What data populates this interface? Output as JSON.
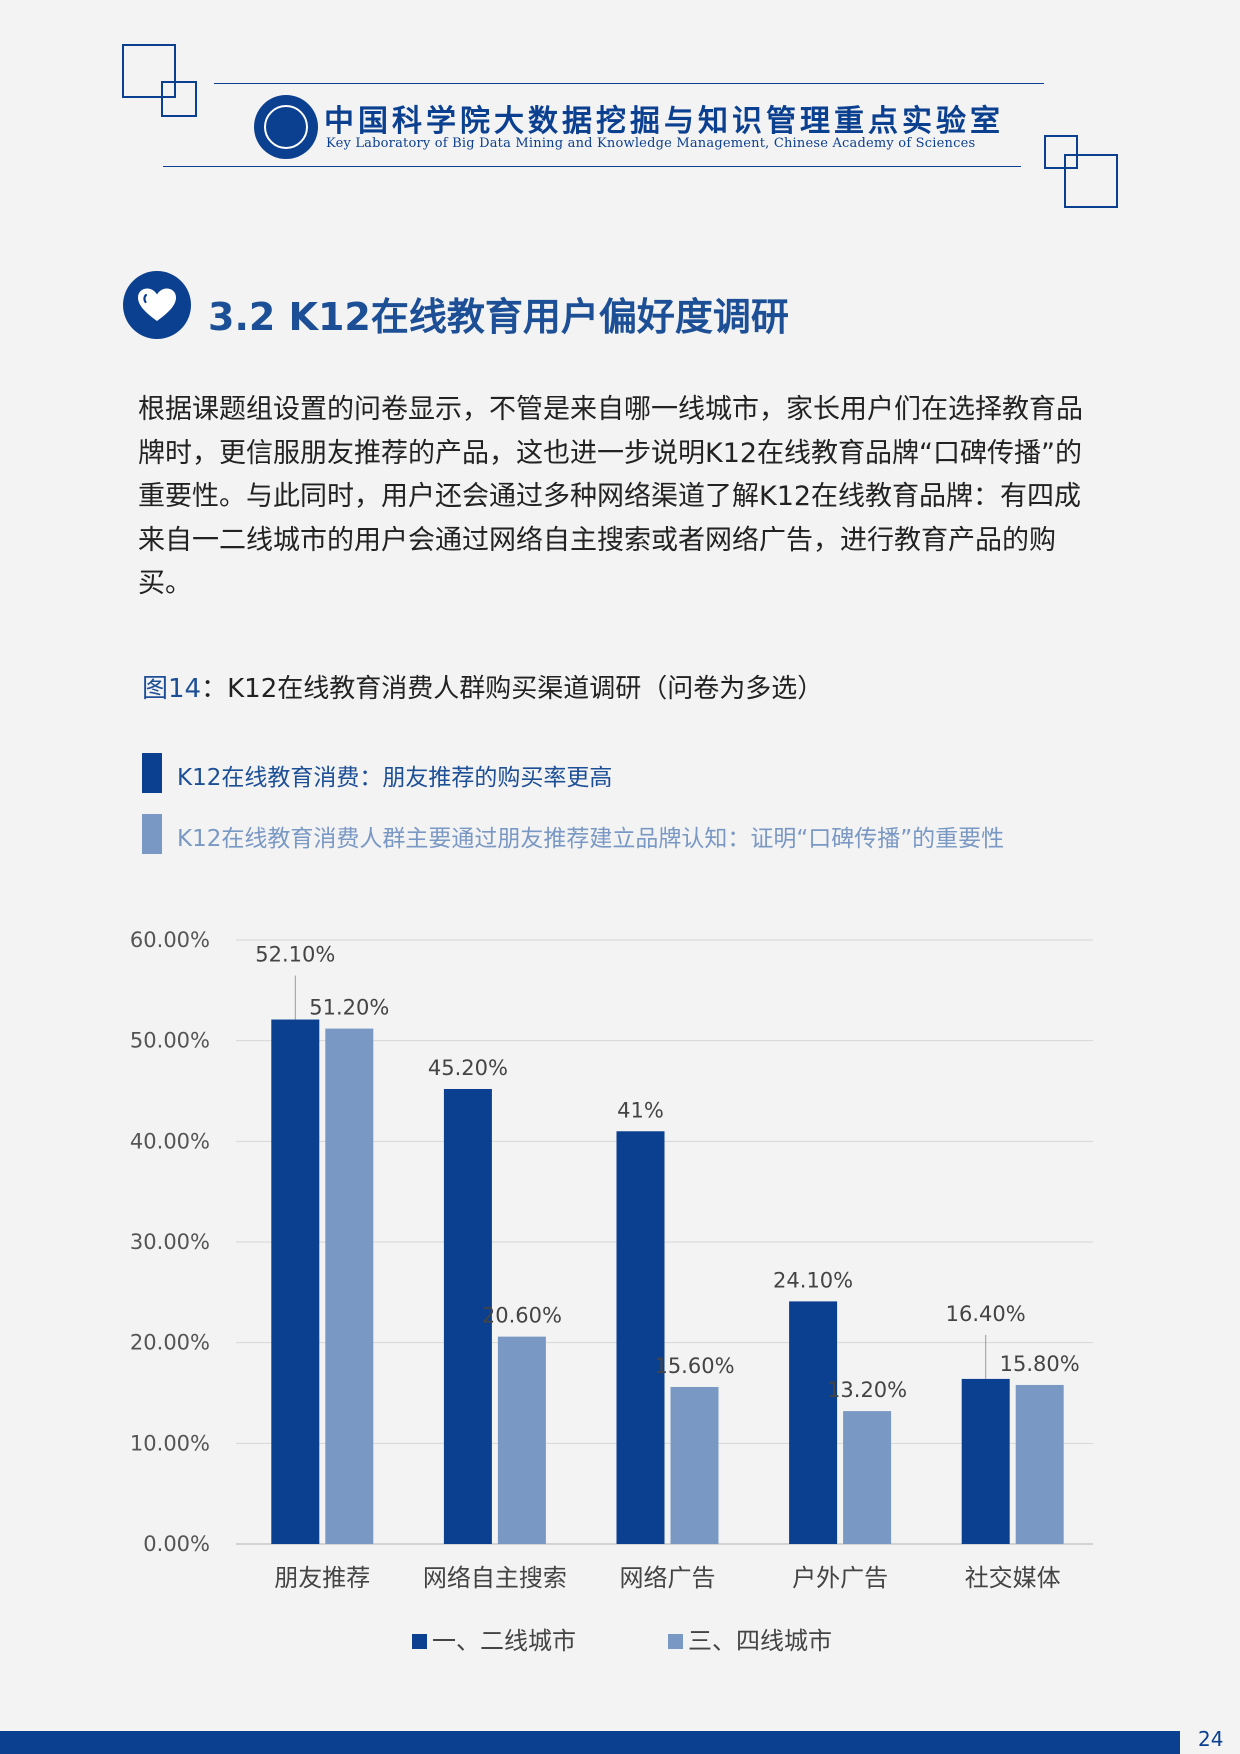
{
  "header": {
    "lab_name_cn": "中国科学院大数据挖掘与知识管理重点实验室",
    "lab_name_en": "Key Laboratory of Big Data Mining and Knowledge Management, Chinese Academy of Sciences",
    "brand_color": "#0b3f8f"
  },
  "section": {
    "title": "3.2 K12在线教育用户偏好度调研",
    "icon": "heart-icon"
  },
  "body_text": "根据课题组设置的问卷显示，不管是来自哪一线城市，家长用户们在选择教育品牌时，更信服朋友推荐的产品，这也进一步说明K12在线教育品牌“口碑传播”的重要性。与此同时，用户还会通过多种网络渠道了解K12在线教育品牌：有四成来自一二线城市的用户会通过网络自主搜索或者网络广告，进行教育产品的购买。",
  "figure": {
    "number": "图14",
    "separator": "：",
    "title": "K12在线教育消费人群购买渠道调研（问卷为多选）"
  },
  "key_points": [
    {
      "text": "K12在线教育消费：朋友推荐的购买率更高",
      "color": "#0b3f8f"
    },
    {
      "text": "K12在线教育消费人群主要通过朋友推荐建立品牌认知：证明“口碑传播”的重要性",
      "color": "#7a98c4"
    }
  ],
  "chart_data": {
    "type": "bar",
    "categories": [
      "朋友推荐",
      "网络自主搜索",
      "网络广告",
      "户外广告",
      "社交媒体"
    ],
    "series": [
      {
        "name": "一、二线城市",
        "values": [
          52.1,
          45.2,
          41,
          24.1,
          16.4
        ],
        "labels": [
          "52.10%",
          "45.20%",
          "41%",
          "24.10%",
          "16.40%"
        ],
        "color": "#0b3f8f"
      },
      {
        "name": "三、四线城市",
        "values": [
          51.2,
          20.6,
          15.6,
          13.2,
          15.8
        ],
        "labels": [
          "51.20%",
          "20.60%",
          "15.60%",
          "13.20%",
          "15.80%"
        ],
        "color": "#7a98c4"
      }
    ],
    "y_ticks": [
      "0.00%",
      "10.00%",
      "20.00%",
      "30.00%",
      "40.00%",
      "50.00%",
      "60.00%"
    ],
    "ylim": [
      0,
      60
    ],
    "y_step": 10,
    "grid": true,
    "legend_position": "bottom"
  },
  "page_number": "24"
}
